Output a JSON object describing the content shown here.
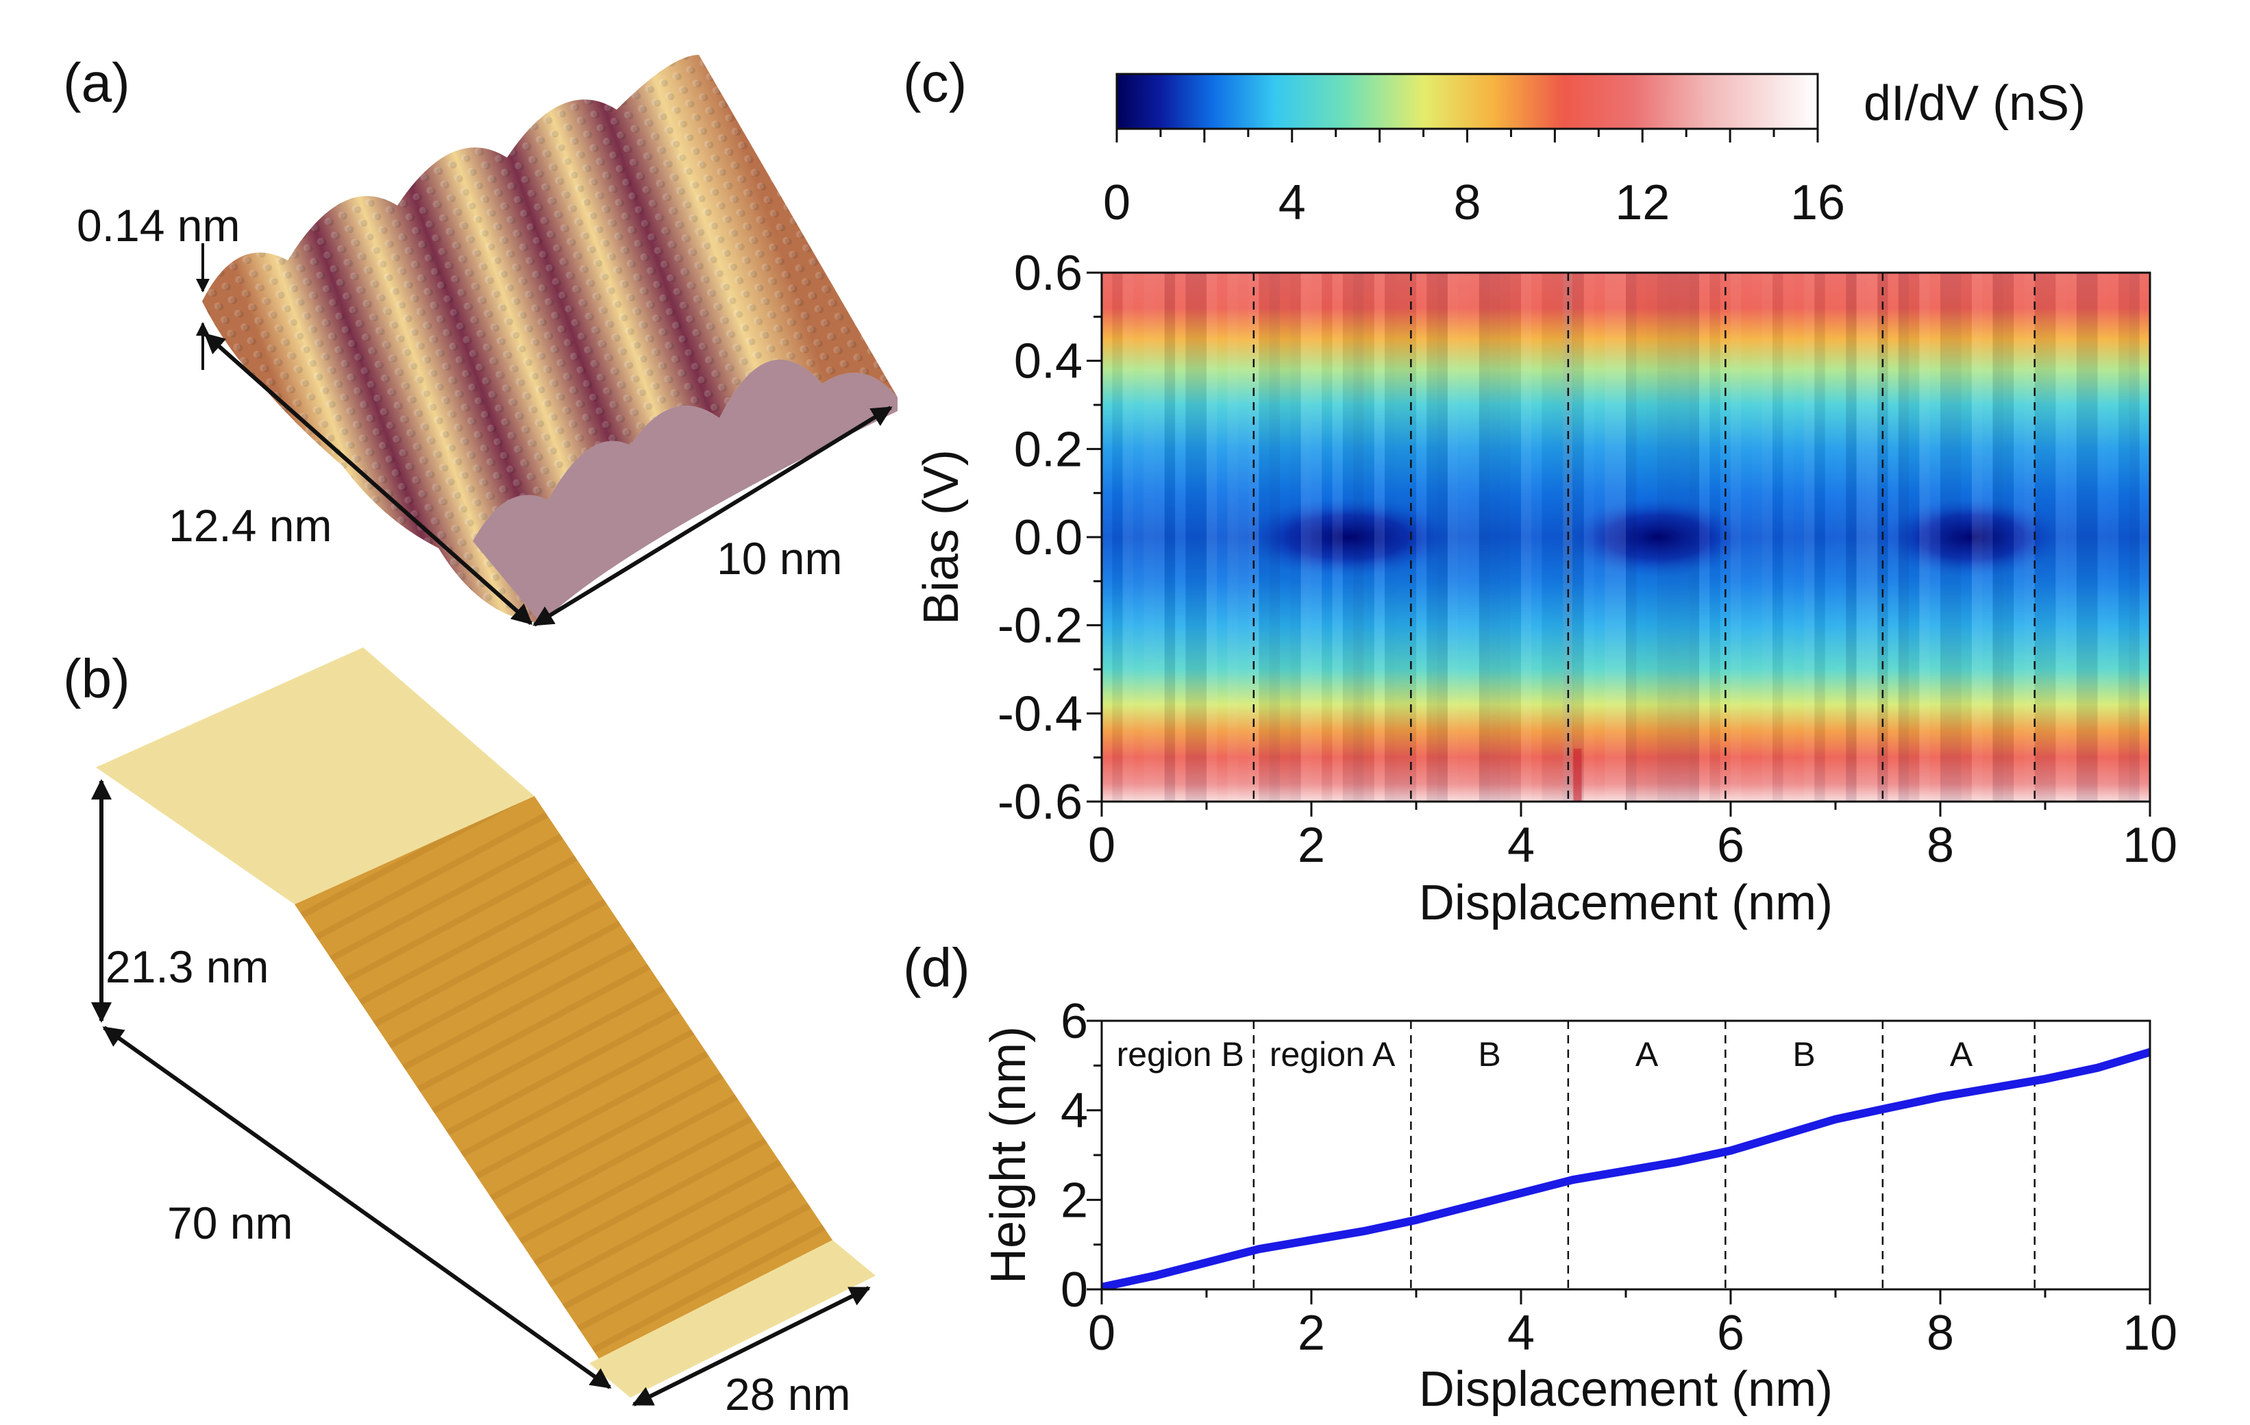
{
  "panels": {
    "a": {
      "label": "(a)",
      "height_label": "0.14 nm",
      "length_label": "12.4 nm",
      "width_label": "10 nm",
      "colors": {
        "low": "#7a2f4a",
        "mid": "#b8704a",
        "high": "#f2d592"
      }
    },
    "b": {
      "label": "(b)",
      "height_label": "21.3 nm",
      "length_label": "70 nm",
      "width_label": "28 nm",
      "colors": {
        "terrace": "#f0df9c",
        "step": "#d49a36"
      }
    },
    "c": {
      "label": "(c)"
    },
    "d": {
      "label": "(d)"
    }
  },
  "colorbar": {
    "label": "dI/dV (nS)",
    "range": [
      0,
      16
    ],
    "ticks": [
      "0",
      "4",
      "8",
      "12",
      "16"
    ],
    "stops": [
      {
        "v": 0,
        "c": "#00005a"
      },
      {
        "v": 1,
        "c": "#0a1ca0"
      },
      {
        "v": 2.2,
        "c": "#0f6fe6"
      },
      {
        "v": 3.6,
        "c": "#36c8f0"
      },
      {
        "v": 5.2,
        "c": "#6ee0b8"
      },
      {
        "v": 7,
        "c": "#e4ec6c"
      },
      {
        "v": 8.6,
        "c": "#f6b340"
      },
      {
        "v": 10.2,
        "c": "#ee5a4a"
      },
      {
        "v": 11.8,
        "c": "#ec7272"
      },
      {
        "v": 13.5,
        "c": "#f2b8b8"
      },
      {
        "v": 16,
        "c": "#ffffff"
      }
    ]
  },
  "chart_data": [
    {
      "type": "heatmap",
      "xlabel": "Displacement (nm)",
      "ylabel": "Bias (V)",
      "xlim": [
        0,
        10
      ],
      "ylim": [
        -0.6,
        0.6
      ],
      "xticks": [
        "0",
        "2",
        "4",
        "6",
        "8",
        "10"
      ],
      "yticks": [
        "0.6",
        "0.4",
        "0.2",
        "0.0",
        "-0.2",
        "-0.4",
        "-0.6"
      ],
      "x_boundaries": [
        1.45,
        2.95,
        4.45,
        5.95,
        7.45,
        8.9
      ],
      "gap_minimum_regions": [
        {
          "x_start": 1.5,
          "x_end": 3.2,
          "value_nS": 0.4
        },
        {
          "x_start": 4.6,
          "x_end": 6.0,
          "value_nS": 0.6
        },
        {
          "x_start": 7.6,
          "x_end": 9.0,
          "value_nS": 0.4
        }
      ],
      "colorbar_label": "dI/dV (nS)",
      "colorbar_range": [
        0,
        16
      ]
    },
    {
      "type": "line",
      "xlabel": "Displacement (nm)",
      "ylabel": "Height (nm)",
      "xlim": [
        0,
        10
      ],
      "ylim": [
        0,
        6
      ],
      "xticks": [
        "0",
        "2",
        "4",
        "6",
        "8",
        "10"
      ],
      "yticks": [
        "0",
        "2",
        "4",
        "6"
      ],
      "x_boundaries": [
        1.45,
        2.95,
        4.45,
        5.95,
        7.45,
        8.9
      ],
      "region_labels": [
        {
          "x": 0.75,
          "text": "region B"
        },
        {
          "x": 2.2,
          "text": "region A"
        },
        {
          "x": 3.7,
          "text": "B"
        },
        {
          "x": 5.2,
          "text": "A"
        },
        {
          "x": 6.7,
          "text": "B"
        },
        {
          "x": 8.2,
          "text": "A"
        }
      ],
      "series": [
        {
          "color": "#1a1ae6",
          "x": [
            0,
            0.5,
            1,
            1.5,
            2,
            2.5,
            3,
            3.5,
            4,
            4.5,
            5,
            5.5,
            6,
            6.5,
            7,
            7.5,
            8,
            8.5,
            9,
            9.5,
            10
          ],
          "y": [
            0.05,
            0.3,
            0.6,
            0.9,
            1.1,
            1.3,
            1.55,
            1.85,
            2.15,
            2.45,
            2.65,
            2.85,
            3.1,
            3.45,
            3.8,
            4.05,
            4.3,
            4.5,
            4.7,
            4.95,
            5.3
          ]
        }
      ]
    }
  ]
}
